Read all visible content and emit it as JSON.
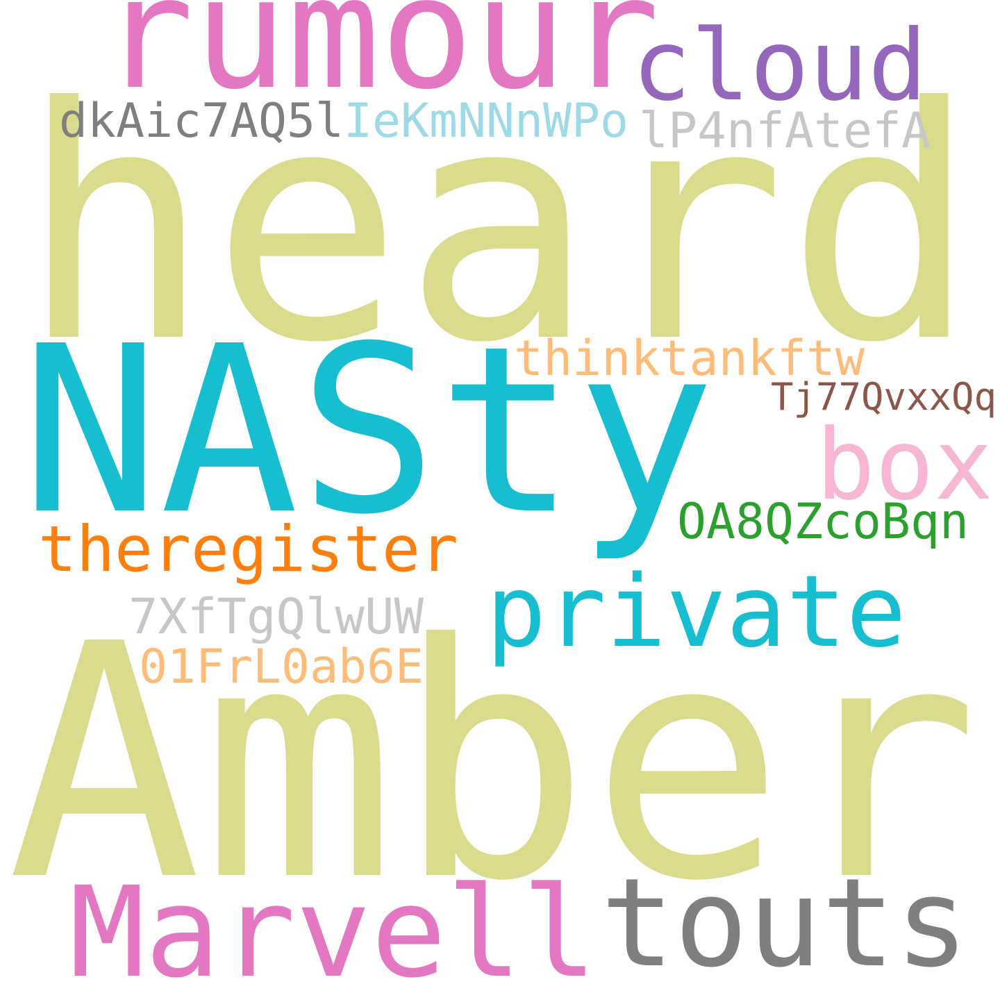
{
  "words": [
    {
      "text": "heard",
      "color": "#dbdb8d"
    },
    {
      "text": "rumour",
      "color": "#e377c2"
    },
    {
      "text": "cloud",
      "color": "#9467bd"
    },
    {
      "text": "dkAic7AQ5l",
      "color": "#7f7f7f"
    },
    {
      "text": "IeKmNNnWPo",
      "color": "#9edae5"
    },
    {
      "text": "lP4nfAtefA",
      "color": "#c7c7c7"
    },
    {
      "text": "NASty",
      "color": "#17becf"
    },
    {
      "text": "thinktankftw",
      "color": "#ffbb78"
    },
    {
      "text": "Tj77QvxxQq",
      "color": "#8c564b"
    },
    {
      "text": "box",
      "color": "#f7b6d2"
    },
    {
      "text": "OA8QZcoBqn",
      "color": "#2ca02c"
    },
    {
      "text": "theregister",
      "color": "#ff7f0e"
    },
    {
      "text": "private",
      "color": "#17becf"
    },
    {
      "text": "7XfTgQlwUW",
      "color": "#c7c7c7"
    },
    {
      "text": "01FrL0ab6E",
      "color": "#ffbb78"
    },
    {
      "text": "Amber",
      "color": "#dbdb8d"
    },
    {
      "text": "Marvell",
      "color": "#e377c2"
    },
    {
      "text": "touts",
      "color": "#7f7f7f"
    }
  ]
}
